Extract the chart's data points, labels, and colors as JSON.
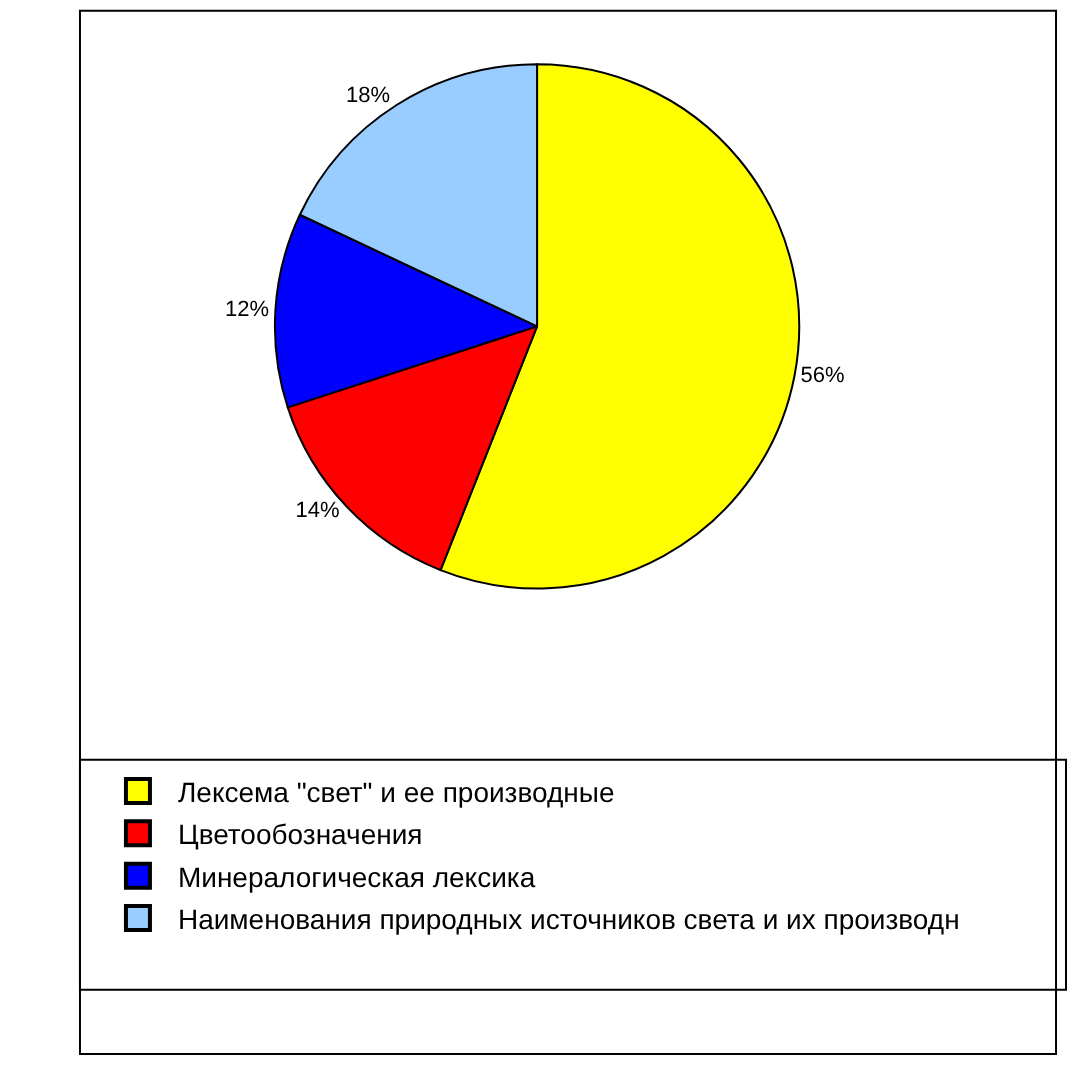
{
  "chart_data": {
    "type": "pie",
    "categories": [
      "Лексема \"свет\" и ее производные",
      "Цветообозначения",
      "Минералогическая лексика",
      "Наименования природных источников света и их производн"
    ],
    "values": [
      56,
      14,
      12,
      18
    ],
    "colors": [
      "#ffff00",
      "#ff0000",
      "#0000ff",
      "#99ccff"
    ],
    "value_labels": [
      "56%",
      "14%",
      "12%",
      "18%"
    ],
    "legend": "bottom"
  }
}
